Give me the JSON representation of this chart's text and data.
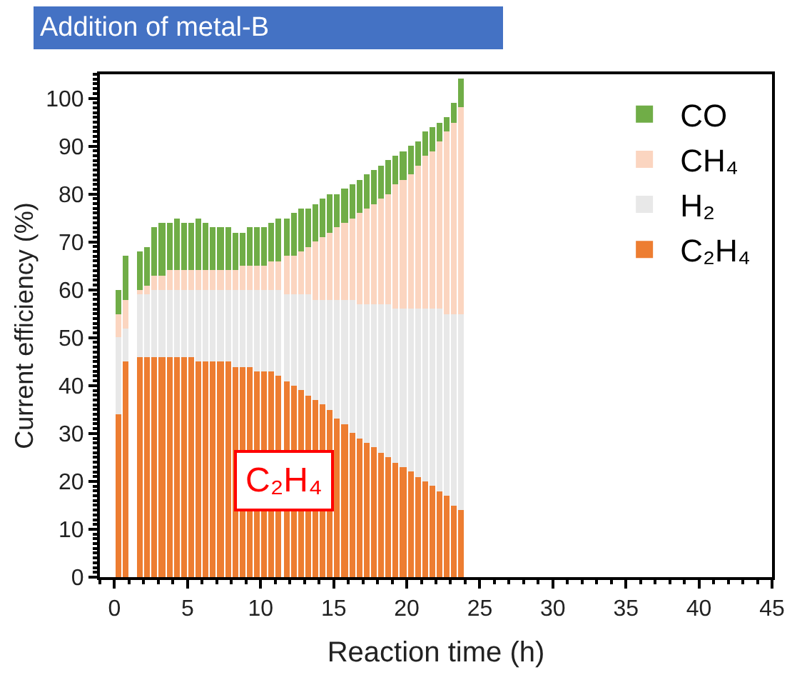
{
  "chart_data": {
    "type": "bar",
    "title": "Addition of metal-B",
    "xlabel": "Reaction time (h)",
    "ylabel": "Current efficiency (%)",
    "stacked": true,
    "x": [
      0.25,
      0.75,
      1.75,
      2.25,
      2.75,
      3.25,
      3.75,
      4.25,
      4.75,
      5.25,
      5.75,
      6.25,
      6.75,
      7.25,
      7.75,
      8.25,
      8.75,
      9.25,
      9.75,
      10.25,
      10.75,
      11.25,
      11.75,
      12.25,
      12.75,
      13.25,
      13.75,
      14.25,
      14.75,
      15.25,
      15.75,
      16.25,
      16.75,
      17.25,
      17.75,
      18.25,
      18.75,
      19.25,
      19.75,
      20.25,
      20.75,
      21.25,
      21.75,
      22.25,
      22.75,
      23.25,
      23.75
    ],
    "series": [
      {
        "name": "C₂H₄",
        "color": "#ed7d31",
        "values": [
          34,
          45,
          46,
          46,
          46,
          46,
          46,
          46,
          46,
          46,
          45,
          45,
          45,
          45,
          45,
          44,
          44,
          44,
          43,
          43,
          43,
          42,
          41,
          40,
          39,
          38,
          37,
          36,
          35,
          33,
          32,
          30,
          29,
          28,
          27,
          26,
          25,
          24,
          23,
          22,
          21,
          20,
          19,
          18,
          17,
          15,
          14
        ]
      },
      {
        "name": "H₂",
        "color": "#e8e8e8",
        "values": [
          16,
          7,
          13,
          13,
          14,
          14,
          14,
          14,
          14,
          14,
          15,
          15,
          15,
          15,
          15,
          16,
          16,
          16,
          17,
          17,
          17,
          18,
          18,
          19,
          20,
          21,
          21,
          22,
          23,
          25,
          26,
          28,
          28,
          29,
          30,
          31,
          32,
          32,
          33,
          34,
          35,
          36,
          37,
          38,
          38,
          40,
          41
        ]
      },
      {
        "name": "CH₄",
        "color": "#fbd5c0",
        "values": [
          5,
          6,
          1,
          2,
          3,
          3,
          4,
          4,
          4,
          4,
          4,
          4,
          4,
          4,
          4,
          4,
          5,
          5,
          5,
          5,
          6,
          6,
          8,
          8,
          9,
          10,
          12,
          13,
          14,
          15,
          16,
          17,
          19,
          20,
          21,
          22,
          23,
          26,
          27,
          28,
          30,
          32,
          33,
          35,
          38,
          40,
          43
        ]
      },
      {
        "name": "CO",
        "color": "#70ad47",
        "values": [
          5,
          9,
          8,
          8,
          10,
          11,
          10,
          11,
          10,
          10,
          11,
          10,
          9,
          9,
          9,
          8,
          7,
          8,
          8,
          8,
          8,
          9,
          8,
          9,
          9,
          8,
          8,
          8,
          8,
          7,
          7,
          7,
          7,
          7,
          7,
          7,
          7,
          6,
          6,
          6,
          5,
          5,
          5,
          4,
          3,
          4,
          6
        ]
      }
    ],
    "xlim": [
      -1,
      45
    ],
    "xticks": [
      0,
      5,
      10,
      15,
      20,
      25,
      30,
      35,
      40,
      45
    ],
    "ylim": [
      0,
      105
    ],
    "yticks": [
      0,
      10,
      20,
      30,
      40,
      50,
      60,
      70,
      80,
      90,
      100
    ],
    "legend": "top right",
    "annotations": [
      "C₂H₄"
    ]
  }
}
